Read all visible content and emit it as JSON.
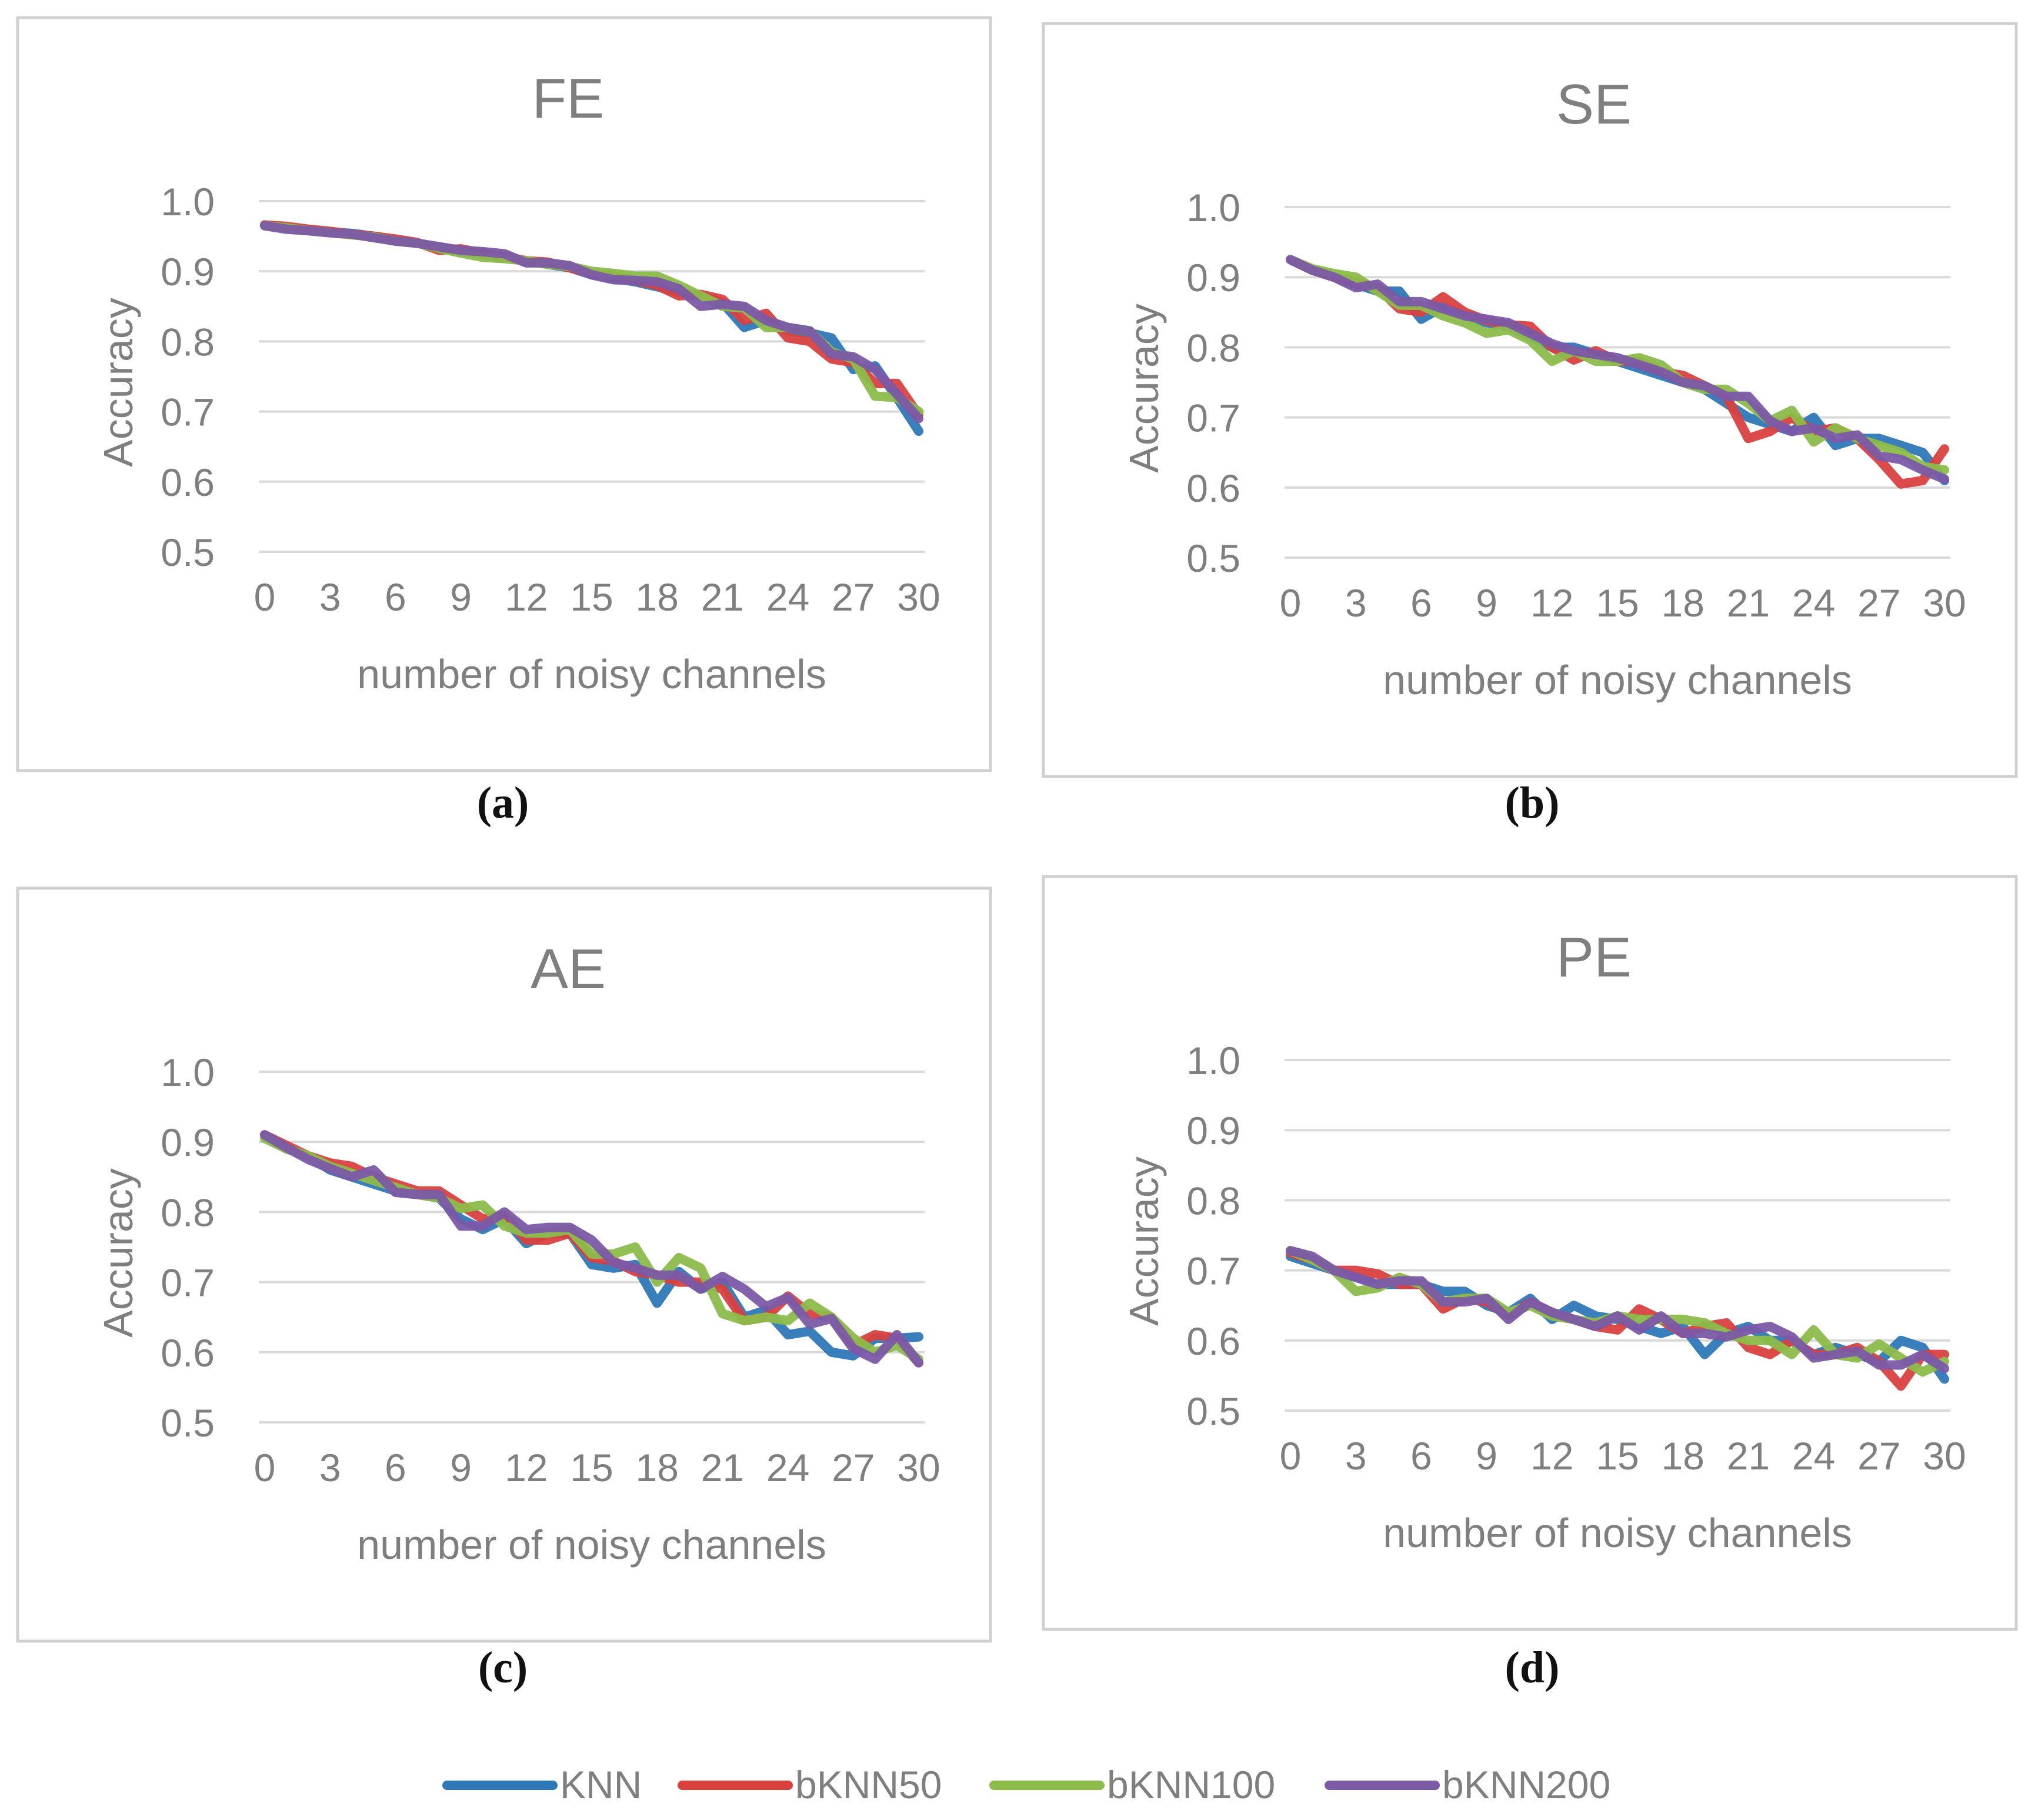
{
  "figure": {
    "panel_labels": [
      "(a)",
      "(b)",
      "(c)",
      "(d)"
    ],
    "legend": [
      "KNN",
      "bKNN50",
      "bKNN100",
      "bKNN200"
    ]
  },
  "colors": {
    "KNN": "#2e78b8",
    "bKNN50": "#d9413f",
    "bKNN100": "#8cbc4a",
    "bKNN200": "#7b5aa6",
    "axis_text": "#7f7f7f",
    "grid": "#d9d9d9",
    "border": "#d0d0d0"
  },
  "chart_data": [
    {
      "type": "line",
      "title": "FE",
      "xlabel": "number of noisy channels",
      "ylabel": "Accuracy",
      "ylim": [
        0.5,
        1.0
      ],
      "xlim": [
        0,
        30
      ],
      "yticks": [
        "0.5",
        "0.6",
        "0.7",
        "0.8",
        "0.9",
        "1.0"
      ],
      "xticks": [
        "0",
        "3",
        "6",
        "9",
        "12",
        "15",
        "18",
        "21",
        "24",
        "27",
        "30"
      ],
      "x": [
        0,
        1,
        2,
        3,
        4,
        5,
        6,
        7,
        8,
        9,
        10,
        11,
        12,
        13,
        14,
        15,
        16,
        17,
        18,
        19,
        20,
        21,
        22,
        23,
        24,
        25,
        26,
        27,
        28,
        29,
        30
      ],
      "series": [
        {
          "name": "KNN",
          "values": [
            0.966,
            0.962,
            0.959,
            0.956,
            0.954,
            0.95,
            0.944,
            0.94,
            0.935,
            0.928,
            0.925,
            0.92,
            0.915,
            0.91,
            0.905,
            0.895,
            0.89,
            0.885,
            0.878,
            0.87,
            0.865,
            0.855,
            0.82,
            0.83,
            0.815,
            0.812,
            0.805,
            0.76,
            0.765,
            0.72,
            0.672
          ]
        },
        {
          "name": "bKNN50",
          "values": [
            0.966,
            0.964,
            0.96,
            0.957,
            0.953,
            0.95,
            0.946,
            0.941,
            0.93,
            0.932,
            0.926,
            0.921,
            0.915,
            0.913,
            0.905,
            0.897,
            0.893,
            0.887,
            0.88,
            0.865,
            0.867,
            0.86,
            0.83,
            0.84,
            0.805,
            0.8,
            0.775,
            0.77,
            0.74,
            0.74,
            0.695
          ]
        },
        {
          "name": "bKNN100",
          "values": [
            0.965,
            0.962,
            0.958,
            0.955,
            0.952,
            0.949,
            0.943,
            0.94,
            0.933,
            0.926,
            0.92,
            0.918,
            0.915,
            0.91,
            0.907,
            0.9,
            0.897,
            0.893,
            0.893,
            0.88,
            0.865,
            0.85,
            0.848,
            0.82,
            0.82,
            0.815,
            0.785,
            0.775,
            0.722,
            0.72,
            0.7
          ]
        },
        {
          "name": "bKNN200",
          "values": [
            0.965,
            0.96,
            0.958,
            0.955,
            0.953,
            0.948,
            0.943,
            0.94,
            0.935,
            0.93,
            0.928,
            0.925,
            0.912,
            0.912,
            0.908,
            0.895,
            0.888,
            0.887,
            0.885,
            0.875,
            0.85,
            0.853,
            0.85,
            0.83,
            0.82,
            0.815,
            0.782,
            0.778,
            0.76,
            0.725,
            0.69
          ]
        }
      ]
    },
    {
      "type": "line",
      "title": "SE",
      "xlabel": "number of noisy channels",
      "ylabel": "Accuracy",
      "ylim": [
        0.5,
        1.0
      ],
      "xlim": [
        0,
        30
      ],
      "yticks": [
        "0.5",
        "0.6",
        "0.7",
        "0.8",
        "0.9",
        "1.0"
      ],
      "xticks": [
        "0",
        "3",
        "6",
        "9",
        "12",
        "15",
        "18",
        "21",
        "24",
        "27",
        "30"
      ],
      "x": [
        0,
        1,
        2,
        3,
        4,
        5,
        6,
        7,
        8,
        9,
        10,
        11,
        12,
        13,
        14,
        15,
        16,
        17,
        18,
        19,
        20,
        21,
        22,
        23,
        24,
        25,
        26,
        27,
        28,
        29,
        30
      ],
      "series": [
        {
          "name": "KNN",
          "values": [
            0.925,
            0.91,
            0.9,
            0.89,
            0.88,
            0.88,
            0.84,
            0.858,
            0.845,
            0.835,
            0.83,
            0.815,
            0.8,
            0.8,
            0.79,
            0.78,
            0.77,
            0.76,
            0.75,
            0.74,
            0.72,
            0.7,
            0.69,
            0.68,
            0.7,
            0.66,
            0.67,
            0.67,
            0.66,
            0.65,
            0.61
          ]
        },
        {
          "name": "bKNN50",
          "values": [
            0.925,
            0.91,
            0.9,
            0.893,
            0.885,
            0.855,
            0.85,
            0.872,
            0.85,
            0.838,
            0.832,
            0.83,
            0.8,
            0.782,
            0.795,
            0.78,
            0.78,
            0.765,
            0.76,
            0.745,
            0.73,
            0.67,
            0.68,
            0.7,
            0.68,
            0.685,
            0.67,
            0.64,
            0.605,
            0.61,
            0.655
          ]
        },
        {
          "name": "bKNN100",
          "values": [
            0.925,
            0.912,
            0.905,
            0.9,
            0.88,
            0.86,
            0.86,
            0.845,
            0.835,
            0.82,
            0.825,
            0.81,
            0.78,
            0.795,
            0.78,
            0.78,
            0.785,
            0.775,
            0.75,
            0.74,
            0.74,
            0.72,
            0.695,
            0.71,
            0.665,
            0.685,
            0.67,
            0.66,
            0.65,
            0.63,
            0.625
          ]
        },
        {
          "name": "bKNN200",
          "values": [
            0.925,
            0.91,
            0.9,
            0.885,
            0.89,
            0.865,
            0.865,
            0.855,
            0.845,
            0.84,
            0.835,
            0.82,
            0.805,
            0.795,
            0.79,
            0.785,
            0.775,
            0.765,
            0.75,
            0.745,
            0.73,
            0.73,
            0.695,
            0.68,
            0.685,
            0.67,
            0.675,
            0.645,
            0.64,
            0.625,
            0.612
          ]
        }
      ]
    },
    {
      "type": "line",
      "title": "AE",
      "xlabel": "number of noisy channels",
      "ylabel": "Accuracy",
      "ylim": [
        0.5,
        1.0
      ],
      "xlim": [
        0,
        30
      ],
      "yticks": [
        "0.5",
        "0.6",
        "0.7",
        "0.8",
        "0.9",
        "1.0"
      ],
      "xticks": [
        "0",
        "3",
        "6",
        "9",
        "12",
        "15",
        "18",
        "21",
        "24",
        "27",
        "30"
      ],
      "x": [
        0,
        1,
        2,
        3,
        4,
        5,
        6,
        7,
        8,
        9,
        10,
        11,
        12,
        13,
        14,
        15,
        16,
        17,
        18,
        19,
        20,
        21,
        22,
        23,
        24,
        25,
        26,
        27,
        28,
        29,
        30
      ],
      "series": [
        {
          "name": "KNN",
          "values": [
            0.91,
            0.89,
            0.88,
            0.86,
            0.85,
            0.84,
            0.83,
            0.825,
            0.82,
            0.79,
            0.775,
            0.79,
            0.755,
            0.77,
            0.77,
            0.725,
            0.72,
            0.725,
            0.67,
            0.715,
            0.69,
            0.7,
            0.65,
            0.66,
            0.625,
            0.63,
            0.6,
            0.595,
            0.62,
            0.62,
            0.622
          ]
        },
        {
          "name": "bKNN50",
          "values": [
            0.91,
            0.895,
            0.88,
            0.87,
            0.865,
            0.85,
            0.84,
            0.83,
            0.83,
            0.81,
            0.79,
            0.795,
            0.76,
            0.76,
            0.77,
            0.735,
            0.73,
            0.715,
            0.71,
            0.7,
            0.7,
            0.69,
            0.645,
            0.65,
            0.68,
            0.655,
            0.65,
            0.61,
            0.625,
            0.62,
            0.585
          ]
        },
        {
          "name": "bKNN100",
          "values": [
            0.905,
            0.89,
            0.88,
            0.865,
            0.855,
            0.845,
            0.835,
            0.825,
            0.82,
            0.805,
            0.81,
            0.78,
            0.77,
            0.77,
            0.775,
            0.74,
            0.74,
            0.75,
            0.7,
            0.735,
            0.72,
            0.655,
            0.645,
            0.65,
            0.645,
            0.67,
            0.65,
            0.62,
            0.6,
            0.61,
            0.59
          ]
        },
        {
          "name": "bKNN200",
          "values": [
            0.91,
            0.892,
            0.875,
            0.862,
            0.85,
            0.86,
            0.828,
            0.825,
            0.825,
            0.78,
            0.78,
            0.8,
            0.775,
            0.778,
            0.778,
            0.76,
            0.728,
            0.72,
            0.71,
            0.71,
            0.69,
            0.708,
            0.69,
            0.665,
            0.678,
            0.64,
            0.648,
            0.605,
            0.59,
            0.625,
            0.585
          ]
        }
      ]
    },
    {
      "type": "line",
      "title": "PE",
      "xlabel": "number of noisy channels",
      "ylabel": "Accuracy",
      "ylim": [
        0.5,
        1.0
      ],
      "xlim": [
        0,
        30
      ],
      "yticks": [
        "0.5",
        "0.6",
        "0.7",
        "0.8",
        "0.9",
        "1.0"
      ],
      "xticks": [
        "0",
        "3",
        "6",
        "9",
        "12",
        "15",
        "18",
        "21",
        "24",
        "27",
        "30"
      ],
      "x": [
        0,
        1,
        2,
        3,
        4,
        5,
        6,
        7,
        8,
        9,
        10,
        11,
        12,
        13,
        14,
        15,
        16,
        17,
        18,
        19,
        20,
        21,
        22,
        23,
        24,
        25,
        26,
        27,
        28,
        29,
        30
      ],
      "series": [
        {
          "name": "KNN",
          "values": [
            0.72,
            0.71,
            0.7,
            0.69,
            0.68,
            0.68,
            0.68,
            0.67,
            0.67,
            0.65,
            0.64,
            0.66,
            0.63,
            0.65,
            0.635,
            0.63,
            0.62,
            0.61,
            0.62,
            0.58,
            0.61,
            0.62,
            0.6,
            0.6,
            0.58,
            0.59,
            0.58,
            0.57,
            0.6,
            0.59,
            0.545
          ]
        },
        {
          "name": "bKNN50",
          "values": [
            0.725,
            0.715,
            0.7,
            0.7,
            0.695,
            0.68,
            0.68,
            0.645,
            0.66,
            0.655,
            0.635,
            0.655,
            0.64,
            0.63,
            0.62,
            0.615,
            0.645,
            0.63,
            0.61,
            0.62,
            0.625,
            0.59,
            0.58,
            0.6,
            0.58,
            0.58,
            0.59,
            0.57,
            0.535,
            0.58,
            0.58
          ]
        },
        {
          "name": "bKNN100",
          "values": [
            0.728,
            0.715,
            0.7,
            0.67,
            0.675,
            0.69,
            0.68,
            0.655,
            0.66,
            0.66,
            0.64,
            0.65,
            0.635,
            0.63,
            0.625,
            0.635,
            0.63,
            0.63,
            0.63,
            0.625,
            0.61,
            0.6,
            0.6,
            0.58,
            0.615,
            0.58,
            0.575,
            0.595,
            0.575,
            0.555,
            0.57
          ]
        },
        {
          "name": "bKNN200",
          "values": [
            0.728,
            0.72,
            0.7,
            0.69,
            0.68,
            0.685,
            0.685,
            0.655,
            0.655,
            0.66,
            0.63,
            0.655,
            0.64,
            0.63,
            0.62,
            0.635,
            0.615,
            0.635,
            0.61,
            0.61,
            0.605,
            0.615,
            0.62,
            0.605,
            0.575,
            0.58,
            0.585,
            0.565,
            0.565,
            0.58,
            0.56
          ]
        }
      ]
    }
  ]
}
